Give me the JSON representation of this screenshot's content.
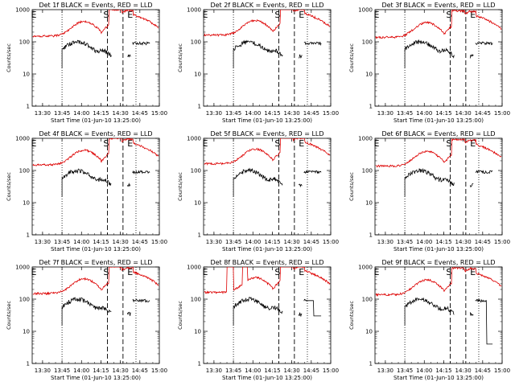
{
  "common": {
    "ylabel": "Counts/sec",
    "xlabel": "Start Time (01-Jun-10 13:25:00)",
    "x_ticks": [
      "13:30",
      "13:45",
      "14:00",
      "14:15",
      "14:30",
      "14:45",
      "15:00"
    ],
    "y_ticks": [
      "1",
      "10",
      "100",
      "1000"
    ],
    "marker_s": "S",
    "marker_e": "E",
    "series_colors": {
      "events": "#000000",
      "lld": "#dd0000"
    }
  },
  "chart_data": [
    {
      "type": "line",
      "title": "Det 1f BLACK = Events, RED = LLD",
      "x_range_min": [
        -3,
        95
      ],
      "y_log_range": [
        1,
        1000
      ],
      "dotted_lines_min": [
        20,
        77
      ],
      "dashed_lines_min": [
        55,
        67
      ],
      "events_start_min": 20,
      "events_end_min": 88,
      "events_gaps": [
        [
          58,
          70
        ],
        [
          73,
          74
        ]
      ],
      "lld_peak": 1000,
      "profile_variant": 1
    },
    {
      "type": "line",
      "title": "Det 2f BLACK = Events, RED = LLD",
      "x_range_min": [
        -3,
        95
      ],
      "y_log_range": [
        1,
        1000
      ],
      "dotted_lines_min": [
        20,
        77
      ],
      "dashed_lines_min": [
        55,
        67
      ],
      "events_start_min": 20,
      "events_end_min": 88,
      "events_gaps": [
        [
          58,
          70
        ],
        [
          73,
          74
        ]
      ],
      "lld_peak": 1000,
      "profile_variant": 2
    },
    {
      "type": "line",
      "title": "Det 3f BLACK = Events, RED = LLD",
      "x_range_min": [
        -3,
        95
      ],
      "y_log_range": [
        1,
        1000
      ],
      "dotted_lines_min": [
        20,
        77
      ],
      "dashed_lines_min": [
        55,
        67
      ],
      "events_start_min": 20,
      "events_end_min": 88,
      "events_gaps": [
        [
          58,
          70
        ],
        [
          73,
          74
        ]
      ],
      "lld_peak": 1000,
      "profile_variant": 3
    },
    {
      "type": "line",
      "title": "Det 4f BLACK = Events, RED = LLD",
      "x_range_min": [
        -3,
        95
      ],
      "y_log_range": [
        1,
        1000
      ],
      "dotted_lines_min": [
        20,
        77
      ],
      "dashed_lines_min": [
        55,
        67
      ],
      "events_start_min": 20,
      "events_end_min": 88,
      "events_gaps": [
        [
          58,
          70
        ],
        [
          73,
          74
        ]
      ],
      "lld_peak": 1000,
      "profile_variant": 4
    },
    {
      "type": "line",
      "title": "Det 5f BLACK = Events, RED = LLD",
      "x_range_min": [
        -3,
        95
      ],
      "y_log_range": [
        1,
        1000
      ],
      "dotted_lines_min": [
        20,
        77
      ],
      "dashed_lines_min": [
        55,
        67
      ],
      "events_start_min": 20,
      "events_end_min": 88,
      "events_gaps": [
        [
          58,
          70
        ],
        [
          73,
          74
        ]
      ],
      "lld_peak": 1000,
      "profile_variant": 5
    },
    {
      "type": "line",
      "title": "Det 6f BLACK = Events, RED = LLD",
      "x_range_min": [
        -3,
        95
      ],
      "y_log_range": [
        1,
        1000
      ],
      "dotted_lines_min": [
        20,
        77
      ],
      "dashed_lines_min": [
        55,
        67
      ],
      "events_start_min": 20,
      "events_end_min": 88,
      "events_gaps": [
        [
          58,
          70
        ],
        [
          73,
          74
        ]
      ],
      "lld_peak": 1000,
      "profile_variant": 6
    },
    {
      "type": "line",
      "title": "Det 7f BLACK = Events, RED = LLD",
      "x_range_min": [
        -3,
        95
      ],
      "y_log_range": [
        1,
        1000
      ],
      "dotted_lines_min": [
        20,
        77
      ],
      "dashed_lines_min": [
        55,
        67
      ],
      "events_start_min": 20,
      "events_end_min": 88,
      "events_gaps": [
        [
          58,
          70
        ],
        [
          73,
          74
        ]
      ],
      "lld_peak": 1000,
      "profile_variant": 7
    },
    {
      "type": "line",
      "title": "Det 8f BLACK = Events, RED = LLD",
      "x_range_min": [
        -3,
        95
      ],
      "y_log_range": [
        1,
        1000
      ],
      "dotted_lines_min": [
        20,
        77
      ],
      "dashed_lines_min": [
        55,
        67
      ],
      "events_start_min": 20,
      "events_end_min": 88,
      "events_gaps": [
        [
          58,
          70
        ],
        [
          73,
          74
        ]
      ],
      "lld_peak": 1000,
      "profile_variant": 8
    },
    {
      "type": "line",
      "title": "Det 9f BLACK = Events, RED = LLD",
      "x_range_min": [
        -3,
        95
      ],
      "y_log_range": [
        1,
        1000
      ],
      "dotted_lines_min": [
        20,
        77
      ],
      "dashed_lines_min": [
        55,
        67
      ],
      "events_start_min": 20,
      "events_end_min": 88,
      "events_gaps": [
        [
          58,
          70
        ],
        [
          73,
          74
        ]
      ],
      "lld_peak": 1000,
      "profile_variant": 9
    }
  ]
}
